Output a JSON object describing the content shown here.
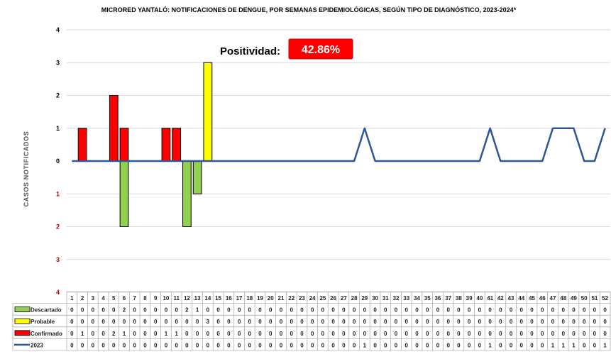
{
  "chart_data": {
    "type": "bar",
    "title": "MICRORED  YANTALÓ: NOTIFICACIONES  DE  DENGUE,  POR SEMANAS EPIDEMIOLÓGICAS,  SEGÚN  TIPO DE DIAGNÓSTICO,  2023-2024*",
    "ylabel": "CASOS NOTIFICADOS",
    "ylim": [
      -4,
      4
    ],
    "y_ticks": [
      {
        "value": 4,
        "label": "4"
      },
      {
        "value": 3,
        "label": "3"
      },
      {
        "value": 2,
        "label": "2"
      },
      {
        "value": 1,
        "label": "1"
      },
      {
        "value": 0,
        "label": "0"
      },
      {
        "value": -1,
        "label": "1"
      },
      {
        "value": -2,
        "label": "2"
      },
      {
        "value": -3,
        "label": "3"
      },
      {
        "value": -4,
        "label": "4"
      }
    ],
    "grid": true,
    "categories": [
      "1",
      "2",
      "3",
      "4",
      "5",
      "6",
      "7",
      "8",
      "9",
      "10",
      "11",
      "12",
      "13",
      "14",
      "15",
      "16",
      "17",
      "18",
      "19",
      "20",
      "21",
      "22",
      "23",
      "24",
      "25",
      "26",
      "27",
      "28",
      "29",
      "30",
      "31",
      "32",
      "33",
      "34",
      "35",
      "36",
      "37",
      "38",
      "39",
      "40",
      "41",
      "42",
      "43",
      "44",
      "45",
      "46",
      "47",
      "48",
      "49",
      "50",
      "51",
      "52"
    ],
    "series": [
      {
        "name": "Descartado",
        "kind": "bar",
        "direction": "down",
        "color": "#92d050",
        "values": [
          0,
          0,
          0,
          0,
          0,
          2,
          0,
          0,
          0,
          0,
          0,
          2,
          1,
          0,
          0,
          0,
          0,
          0,
          0,
          0,
          0,
          0,
          0,
          0,
          0,
          0,
          0,
          0,
          0,
          0,
          0,
          0,
          0,
          0,
          0,
          0,
          0,
          0,
          0,
          0,
          0,
          0,
          0,
          0,
          0,
          0,
          0,
          0,
          0,
          0,
          0,
          0
        ]
      },
      {
        "name": "Probable",
        "kind": "bar",
        "direction": "up",
        "color": "#ffff00",
        "values": [
          0,
          0,
          0,
          0,
          0,
          0,
          0,
          0,
          0,
          0,
          0,
          0,
          0,
          3,
          0,
          0,
          0,
          0,
          0,
          0,
          0,
          0,
          0,
          0,
          0,
          0,
          0,
          0,
          0,
          0,
          0,
          0,
          0,
          0,
          0,
          0,
          0,
          0,
          0,
          0,
          0,
          0,
          0,
          0,
          0,
          0,
          0,
          0,
          0,
          0,
          0,
          0
        ]
      },
      {
        "name": "Confirmado",
        "kind": "bar",
        "direction": "up",
        "color": "#ff0000",
        "values": [
          0,
          1,
          0,
          0,
          2,
          1,
          0,
          0,
          0,
          1,
          1,
          0,
          0,
          0,
          0,
          0,
          0,
          0,
          0,
          0,
          0,
          0,
          0,
          0,
          0,
          0,
          0,
          0,
          0,
          0,
          0,
          0,
          0,
          0,
          0,
          0,
          0,
          0,
          0,
          0,
          0,
          0,
          0,
          0,
          0,
          0,
          0,
          0,
          0,
          0,
          0,
          0
        ]
      },
      {
        "name": "2023",
        "kind": "line",
        "color": "#2f5597",
        "values": [
          0,
          0,
          0,
          0,
          0,
          0,
          0,
          0,
          0,
          0,
          0,
          0,
          0,
          0,
          0,
          0,
          0,
          0,
          0,
          0,
          0,
          0,
          0,
          0,
          0,
          0,
          0,
          0,
          1,
          0,
          0,
          0,
          0,
          0,
          0,
          0,
          0,
          0,
          0,
          0,
          1,
          0,
          0,
          0,
          0,
          0,
          1,
          1,
          1,
          0,
          0,
          1
        ]
      }
    ],
    "annotation": {
      "label": "Positividad:",
      "value": "42.86%",
      "color": "#ff0000"
    }
  }
}
